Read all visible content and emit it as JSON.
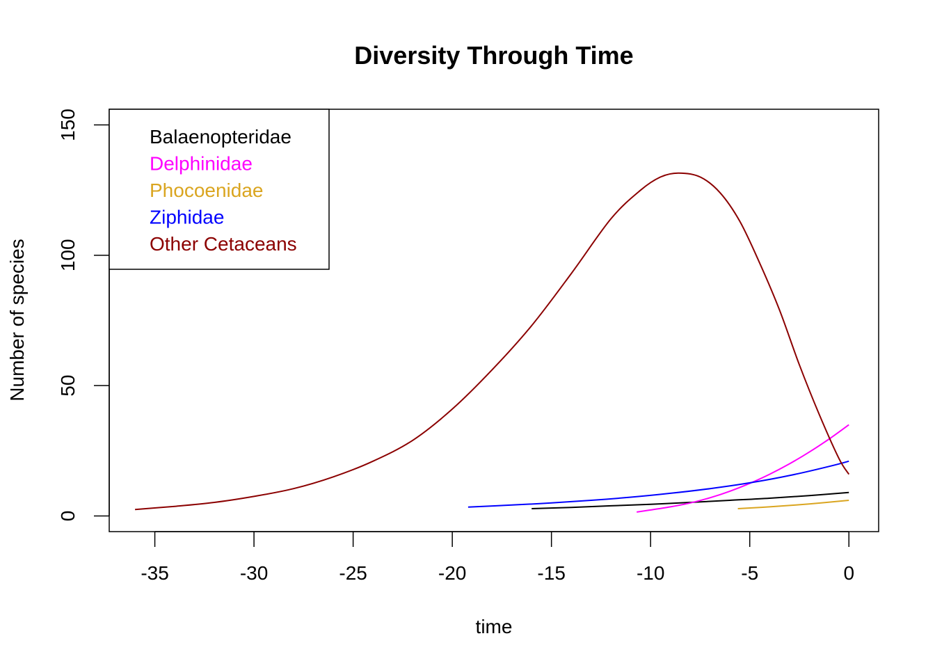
{
  "chart_data": {
    "type": "line",
    "title": "Diversity Through Time",
    "xlabel": "time",
    "ylabel": "Number of species",
    "xlim": [
      -37.3,
      1.5
    ],
    "ylim": [
      -6,
      156
    ],
    "x_ticks": [
      -35,
      -30,
      -25,
      -20,
      -15,
      -10,
      -5,
      0
    ],
    "y_ticks": [
      0,
      50,
      100,
      150
    ],
    "grid": false,
    "legend_position": "top-left",
    "series": [
      {
        "name": "Balaenopteridae",
        "color": "#000000",
        "x": [
          -16,
          -14,
          -12,
          -10,
          -8,
          -6,
          -4,
          -2,
          0
        ],
        "y": [
          2.8,
          3.3,
          3.9,
          4.5,
          5.2,
          6.0,
          6.8,
          7.8,
          9.0
        ]
      },
      {
        "name": "Delphinidae",
        "color": "#ff00ff",
        "x": [
          -10.7,
          -10,
          -9,
          -8,
          -7,
          -6,
          -5,
          -4,
          -3,
          -2,
          -1,
          0
        ],
        "y": [
          1.5,
          2.3,
          3.5,
          5.0,
          7.0,
          9.5,
          12.5,
          16.0,
          20.0,
          24.5,
          29.5,
          35.0
        ]
      },
      {
        "name": "Phocoenidae",
        "color": "#daa520",
        "x": [
          -5.6,
          -4,
          -2,
          0
        ],
        "y": [
          2.8,
          3.5,
          4.6,
          6.0
        ]
      },
      {
        "name": "Ziphidae",
        "color": "#0000ff",
        "x": [
          -19.2,
          -17,
          -15,
          -13,
          -11,
          -9,
          -7,
          -5,
          -3,
          -1,
          0
        ],
        "y": [
          3.4,
          4.2,
          5.0,
          6.0,
          7.2,
          8.7,
          10.5,
          12.7,
          15.5,
          19.0,
          21.0
        ]
      },
      {
        "name": "Other Cetaceans",
        "color": "#8b0000",
        "x": [
          -36,
          -34,
          -32,
          -30,
          -28,
          -26,
          -24,
          -22,
          -20,
          -18,
          -16,
          -14,
          -12,
          -10.5,
          -9.5,
          -8.6,
          -7.5,
          -6.5,
          -5.5,
          -4.5,
          -3.5,
          -2.5,
          -1.5,
          -0.5,
          0
        ],
        "y": [
          2.5,
          3.7,
          5.2,
          7.5,
          10.5,
          15,
          21,
          29,
          41,
          56,
          73,
          93,
          114,
          125,
          130,
          131.5,
          130,
          124,
          113,
          97,
          79,
          58,
          39,
          22,
          16
        ]
      }
    ]
  }
}
